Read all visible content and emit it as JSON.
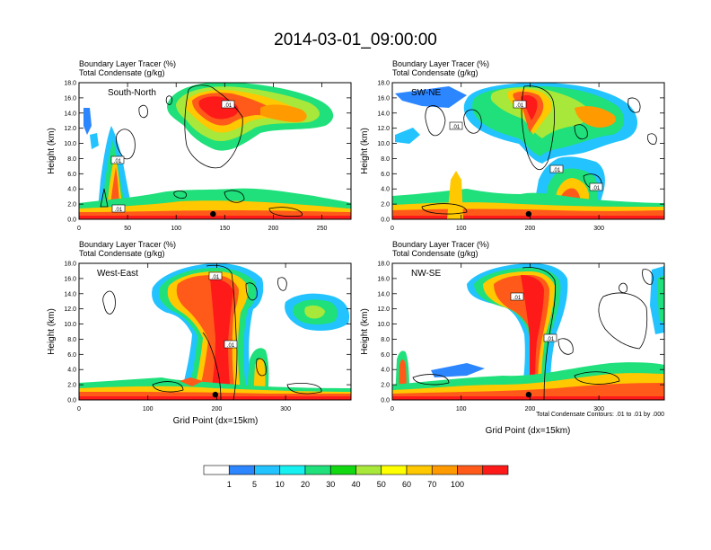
{
  "figure": {
    "title": "2014-03-01_09:00:00",
    "footnote": "Total Condensate Contours: .01 to .01 by .000",
    "colorbar": {
      "labels": [
        "1",
        "5",
        "10",
        "20",
        "30",
        "40",
        "50",
        "60",
        "70",
        "100"
      ],
      "colors": [
        "#ffffff",
        "#2b86ff",
        "#22c3ff",
        "#17f0f0",
        "#1fe07a",
        "#12d812",
        "#a8e83a",
        "#ffff00",
        "#ffc800",
        "#ff9a00",
        "#ff5a1a",
        "#ff1a1a"
      ]
    }
  },
  "chart_data": [
    {
      "type": "heatmap",
      "panel": "South-North",
      "heading1": "Boundary Layer Tracer    (%)",
      "heading2": "Total Condensate   (g/kg)",
      "xlabel": "",
      "ylabel": "Height (km)",
      "xlim": [
        0,
        280
      ],
      "ylim": [
        0,
        18
      ],
      "xticks": [
        "0",
        "50",
        "100",
        "150",
        "200",
        "250"
      ],
      "yticks": [
        "0.0",
        "2.0",
        "4.0",
        "6.0",
        "8.0",
        "10.0",
        "12.0",
        "14.0",
        "16.0",
        "18.0"
      ],
      "contour_labels": [
        ".01",
        ".01",
        ".01"
      ],
      "marker_x": 138
    },
    {
      "type": "heatmap",
      "panel": "SW-NE",
      "heading1": "Boundary Layer Tracer    (%)",
      "heading2": "Total Condensate   (g/kg)",
      "xlabel": "",
      "ylabel": "Height (km)",
      "xlim": [
        0,
        395
      ],
      "ylim": [
        0,
        18
      ],
      "xticks": [
        "0",
        "100",
        "200",
        "300"
      ],
      "yticks": [
        "0.0",
        "2.0",
        "4.0",
        "6.0",
        "8.0",
        "10.0",
        "12.0",
        "14.0",
        "16.0",
        "18.0"
      ],
      "contour_labels": [
        ".01",
        ".01",
        ".01",
        ".01"
      ],
      "marker_x": 198
    },
    {
      "type": "heatmap",
      "panel": "West-East",
      "heading1": "Boundary Layer Tracer    (%)",
      "heading2": "Total Condensate   (g/kg)",
      "xlabel": "Grid Point (dx=15km)",
      "ylabel": "Height (km)",
      "xlim": [
        0,
        395
      ],
      "ylim": [
        0,
        18
      ],
      "xticks": [
        "0",
        "100",
        "200",
        "300"
      ],
      "yticks": [
        "0.0",
        "2.0",
        "4.0",
        "6.0",
        "8.0",
        "10.0",
        "12.0",
        "14.0",
        "16.0",
        "18.0"
      ],
      "contour_labels": [
        ".01",
        ".01"
      ],
      "marker_x": 198
    },
    {
      "type": "heatmap",
      "panel": "NW-SE",
      "heading1": "Boundary Layer Tracer    (%)",
      "heading2": "Total Condensate   (g/kg)",
      "xlabel": "Grid Point (dx=15km)",
      "ylabel": "Height (km)",
      "xlim": [
        0,
        395
      ],
      "ylim": [
        0,
        18
      ],
      "xticks": [
        "0",
        "100",
        "200",
        "300"
      ],
      "yticks": [
        "0.0",
        "2.0",
        "4.0",
        "6.0",
        "8.0",
        "10.0",
        "12.0",
        "14.0",
        "16.0",
        "18.0"
      ],
      "contour_labels": [
        ".01",
        ".01"
      ],
      "marker_x": 198
    }
  ]
}
